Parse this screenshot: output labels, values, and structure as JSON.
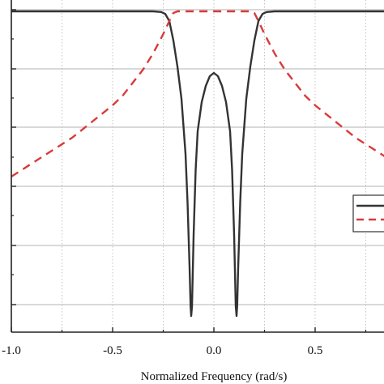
{
  "chart_data": {
    "type": "line",
    "xlabel": "Normalized Frequency (rad/s)",
    "ylabel": "",
    "xlim": [
      -1.0,
      0.85
    ],
    "ylim": [
      0,
      1
    ],
    "grid": true,
    "legend_placement": "right",
    "x_ticks": [
      -1.0,
      -0.5,
      0.0,
      0.5
    ],
    "x_tick_labels": [
      "-1.0",
      "-0.5",
      "0.0",
      "0.5"
    ],
    "y_ticks": [
      0,
      0.18,
      0.36,
      0.54,
      0.72,
      0.9
    ],
    "series": [
      {
        "style": "solid",
        "color": "#333333",
        "x": [
          -1.0,
          -0.5,
          -0.35,
          -0.3,
          -0.26,
          -0.24,
          -0.22,
          -0.2,
          -0.18,
          -0.16,
          -0.14,
          -0.13,
          -0.12,
          -0.115,
          -0.112,
          -0.108,
          -0.1,
          -0.09,
          -0.08,
          -0.06,
          -0.04,
          -0.02,
          0.0,
          0.02,
          0.04,
          0.06,
          0.08,
          0.09,
          0.1,
          0.108,
          0.112,
          0.115,
          0.12,
          0.13,
          0.14,
          0.16,
          0.18,
          0.2,
          0.22,
          0.24,
          0.26,
          0.3,
          0.35,
          0.5,
          0.85
        ],
        "y": [
          0.99,
          0.99,
          0.99,
          0.99,
          0.988,
          0.982,
          0.96,
          0.9,
          0.82,
          0.72,
          0.55,
          0.4,
          0.2,
          0.08,
          0.05,
          0.08,
          0.3,
          0.5,
          0.62,
          0.71,
          0.76,
          0.79,
          0.8,
          0.79,
          0.76,
          0.71,
          0.62,
          0.5,
          0.3,
          0.08,
          0.05,
          0.08,
          0.2,
          0.4,
          0.55,
          0.72,
          0.82,
          0.9,
          0.96,
          0.982,
          0.988,
          0.99,
          0.99,
          0.99,
          0.99
        ]
      },
      {
        "style": "dashed",
        "color": "#d93a3a",
        "x": [
          -1.0,
          -0.9,
          -0.8,
          -0.7,
          -0.6,
          -0.5,
          -0.45,
          -0.4,
          -0.35,
          -0.3,
          -0.25,
          -0.22,
          -0.2,
          -0.18,
          -0.15,
          -0.1,
          0.0,
          0.1,
          0.15,
          0.18,
          0.2,
          0.22,
          0.25,
          0.3,
          0.35,
          0.4,
          0.45,
          0.5,
          0.6,
          0.7,
          0.8,
          0.85
        ],
        "y": [
          0.48,
          0.52,
          0.56,
          0.6,
          0.65,
          0.7,
          0.73,
          0.77,
          0.81,
          0.86,
          0.92,
          0.96,
          0.985,
          0.99,
          0.99,
          0.99,
          0.99,
          0.99,
          0.99,
          0.99,
          0.985,
          0.96,
          0.92,
          0.86,
          0.81,
          0.77,
          0.73,
          0.7,
          0.65,
          0.6,
          0.56,
          0.54
        ]
      }
    ]
  }
}
